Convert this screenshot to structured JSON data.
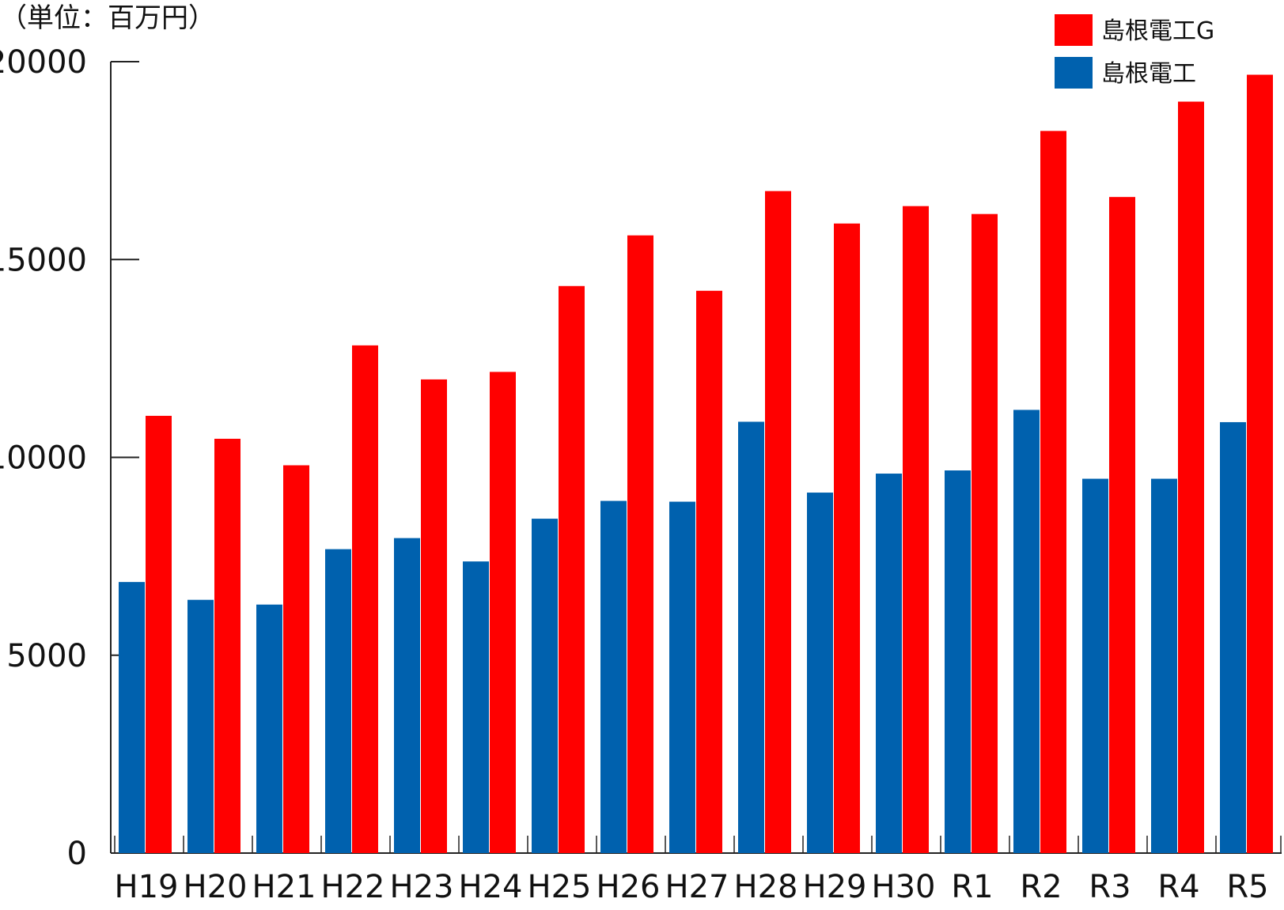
{
  "chart_data": {
    "type": "bar",
    "unit_label": "（単位：百万円）",
    "categories": [
      "H19",
      "H20",
      "H21",
      "H22",
      "H23",
      "H24",
      "H25",
      "H26",
      "H27",
      "H28",
      "H29",
      "H30",
      "R1",
      "R2",
      "R3",
      "R4",
      "R5"
    ],
    "series": [
      {
        "name": "島根電工",
        "color": "#0061ae",
        "values": [
          6850,
          6400,
          6280,
          7680,
          7960,
          7370,
          8450,
          8900,
          8880,
          10900,
          9110,
          9590,
          9670,
          11200,
          9460,
          9460,
          10890
        ]
      },
      {
        "name": "島根電工G",
        "color": "#ff0000",
        "values": [
          11050,
          10470,
          9800,
          12830,
          11970,
          12160,
          14330,
          15610,
          14210,
          16730,
          15910,
          16350,
          16150,
          18250,
          16580,
          18990,
          19670
        ]
      }
    ],
    "yticks": [
      "0",
      "5000",
      "10000",
      "15000",
      "20000"
    ],
    "ylim": [
      0,
      20000
    ],
    "legend_position": "top-right",
    "grid": false
  }
}
